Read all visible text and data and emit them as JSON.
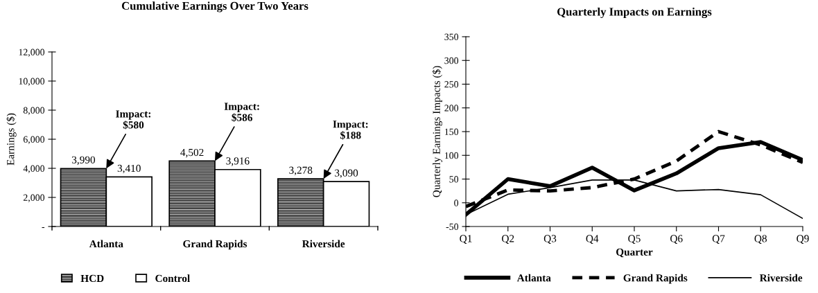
{
  "chart_data": [
    {
      "type": "bar",
      "title": "Cumulative Earnings Over Two Years",
      "ylabel": "Earnings ($)",
      "categories": [
        "Atlanta",
        "Grand Rapids",
        "Riverside"
      ],
      "series": [
        {
          "name": "HCD",
          "color": "#000000",
          "values": [
            3990,
            4502,
            3278
          ],
          "value_labels": [
            "3,990",
            "4,502",
            "3,278"
          ]
        },
        {
          "name": "Control",
          "color": "#ffffff",
          "values": [
            3410,
            3916,
            3090
          ],
          "value_labels": [
            "3,410",
            "3,916",
            "3,090"
          ]
        }
      ],
      "ylim": [
        0,
        12000
      ],
      "yticks": [
        {
          "value": 0,
          "label": "-"
        },
        {
          "value": 2000,
          "label": "2,000"
        },
        {
          "value": 4000,
          "label": "4,000"
        },
        {
          "value": 6000,
          "label": "6,000"
        },
        {
          "value": 8000,
          "label": "8,000"
        },
        {
          "value": 10000,
          "label": "10,000"
        },
        {
          "value": 12000,
          "label": "12,000"
        }
      ],
      "annotations": [
        {
          "text": "Impact:\n$580",
          "x": "Atlanta",
          "y": 3990
        },
        {
          "text": "Impact:\n$586",
          "x": "Grand Rapids",
          "y": 4502
        },
        {
          "text": "Impact:\n$188",
          "x": "Riverside",
          "y": 3278
        }
      ],
      "grid": false,
      "legend": "bottom left"
    },
    {
      "type": "line",
      "title": "Quarterly Impacts on Earnings",
      "xlabel": "Quarter",
      "ylabel": "Quarterly Earnings Impacts ($)",
      "categories": [
        "Q1",
        "Q2",
        "Q3",
        "Q4",
        "Q5",
        "Q6",
        "Q7",
        "Q8",
        "Q9"
      ],
      "series": [
        {
          "name": "Atlanta",
          "color": "#000000",
          "line_style": "solid",
          "values": [
            -25,
            50,
            35,
            74,
            26,
            62,
            115,
            128,
            90
          ]
        },
        {
          "name": "Grand Rapids",
          "color": "#000000",
          "line_style": "dashed",
          "values": [
            -8,
            27,
            25,
            32,
            50,
            88,
            150,
            122,
            85
          ]
        },
        {
          "name": "Riverside",
          "color": "#000000",
          "line_style": "solid",
          "values": [
            -25,
            18,
            32,
            48,
            48,
            25,
            28,
            17,
            -33
          ]
        }
      ],
      "ylim": [
        -50,
        350
      ],
      "yticks": [
        -50,
        0,
        50,
        100,
        150,
        200,
        250,
        300,
        350
      ],
      "grid": false,
      "legend": "bottom",
      "marker": "none"
    }
  ]
}
